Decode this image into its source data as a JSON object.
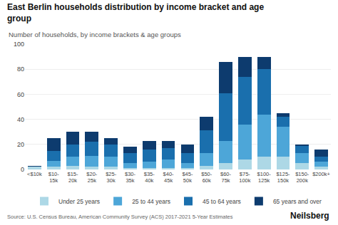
{
  "chart_data": {
    "type": "bar",
    "stacked": true,
    "title": "East Berlin households distribution by income bracket and age\ngroup",
    "subtitle": "Number of households, by income brackets & age groups",
    "annotations": [
      "Source: U.S. Census Bureau, American Community Survey (ACS) 2017-2021 5-Year Estimates",
      "Neilsberg"
    ],
    "categories": [
      "<$10k",
      "$10-\n15k",
      "$15-\n20k",
      "$20-\n25k",
      "$25-\n30k",
      "$30-\n35k",
      "$35-\n40k",
      "$40-\n45k",
      "$45-\n50k",
      "$50-\n60k",
      "$60-\n75k",
      "$75-\n100k",
      "$100-\n125k",
      "$125-\n150k",
      "$150-\n200k",
      "$200k+"
    ],
    "series": [
      {
        "name": "Under 25 years",
        "color": "#add8e6",
        "values": [
          2,
          2,
          3,
          2,
          2,
          1,
          1,
          1,
          1,
          3,
          5,
          8,
          10,
          10,
          5,
          2
        ]
      },
      {
        "name": "25 to 44 years",
        "color": "#4da6d8",
        "values": [
          0,
          5,
          7,
          9,
          8,
          4,
          5,
          7,
          4,
          10,
          18,
          28,
          34,
          24,
          8,
          4
        ]
      },
      {
        "name": "45 to 64 years",
        "color": "#1a6fad",
        "values": [
          0,
          8,
          10,
          11,
          10,
          8,
          10,
          9,
          8,
          18,
          38,
          38,
          36,
          8,
          6,
          4
        ]
      },
      {
        "name": "65 years and over",
        "color": "#0d3b6e",
        "values": [
          1,
          10,
          10,
          8,
          5,
          5,
          7,
          6,
          7,
          11,
          25,
          16,
          10,
          3,
          1,
          6
        ]
      }
    ],
    "ylim": [
      0,
      100
    ],
    "yticks": [
      0,
      20,
      40,
      60,
      80,
      100
    ],
    "grid": true,
    "legend": "bottom"
  }
}
